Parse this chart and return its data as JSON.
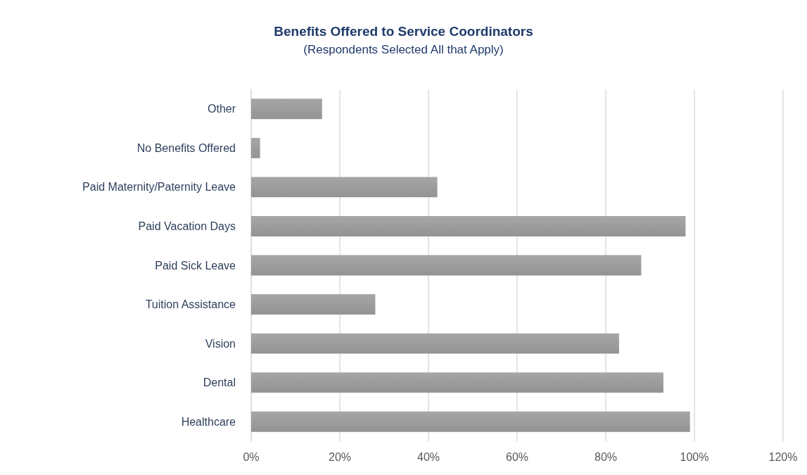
{
  "chart_data": {
    "type": "bar",
    "orientation": "horizontal",
    "title": "Benefits Offered to Service Coordinators",
    "subtitle": "(Respondents Selected All that Apply)",
    "categories": [
      "Other",
      "No Benefits Offered",
      "Paid Maternity/Paternity Leave",
      "Paid Vacation Days",
      "Paid Sick Leave",
      "Tuition Assistance",
      "Vision",
      "Dental",
      "Healthcare"
    ],
    "values": [
      16,
      2,
      42,
      98,
      88,
      28,
      83,
      93,
      99
    ],
    "color": "#a6a6a6",
    "xlim": [
      0,
      120
    ],
    "xticks": [
      {
        "value": 0,
        "label": "0%"
      },
      {
        "value": 20,
        "label": "20%"
      },
      {
        "value": 40,
        "label": "40%"
      },
      {
        "value": 60,
        "label": "60%"
      },
      {
        "value": 80,
        "label": "80%"
      },
      {
        "value": 100,
        "label": "100%"
      },
      {
        "value": 120,
        "label": "120%"
      }
    ],
    "grid": "x"
  }
}
